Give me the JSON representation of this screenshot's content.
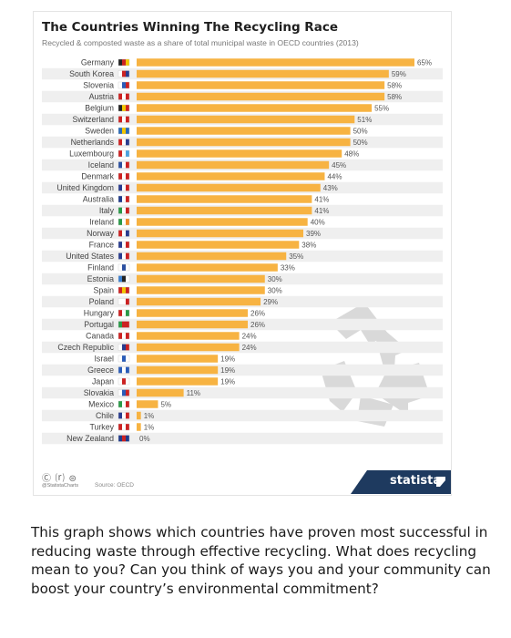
{
  "chart_data": {
    "type": "bar",
    "orientation": "horizontal",
    "title": "The Countries Winning The Recycling Race",
    "subtitle": "Recycled & composted waste as a share of total municipal waste in OECD countries (2013)",
    "value_suffix": "%",
    "xlim": [
      0,
      65
    ],
    "grid": false,
    "legend": "none",
    "bar_color": "#f7b342",
    "row_stripe_color": "#efefef",
    "categories": [
      "Germany",
      "South Korea",
      "Slovenia",
      "Austria",
      "Belgium",
      "Switzerland",
      "Sweden",
      "Netherlands",
      "Luxembourg",
      "Iceland",
      "Denmark",
      "United Kingdom",
      "Australia",
      "Italy",
      "Ireland",
      "Norway",
      "France",
      "United States",
      "Finland",
      "Estonia",
      "Spain",
      "Poland",
      "Hungary",
      "Portugal",
      "Canada",
      "Czech Republic",
      "Israel",
      "Greece",
      "Japan",
      "Slovakia",
      "Mexico",
      "Chile",
      "Turkey",
      "New Zealand"
    ],
    "values": [
      65,
      59,
      58,
      58,
      55,
      51,
      50,
      50,
      48,
      45,
      44,
      43,
      41,
      41,
      40,
      39,
      38,
      35,
      33,
      30,
      30,
      29,
      26,
      26,
      24,
      24,
      19,
      19,
      19,
      11,
      5,
      1,
      1,
      0
    ]
  },
  "footer": {
    "cc_icons": "Ⓒ ⒭ ⊜",
    "handle": "@StatistaCharts",
    "source": "Source: OECD",
    "brand": "statista",
    "brand_color": "#1e3a5f"
  },
  "caption": "This graph shows which countries have proven most successful in reducing waste through effective recycling. What does recycling mean to you? Can you think of ways you and your community can boost your country’s environmental commitment?"
}
